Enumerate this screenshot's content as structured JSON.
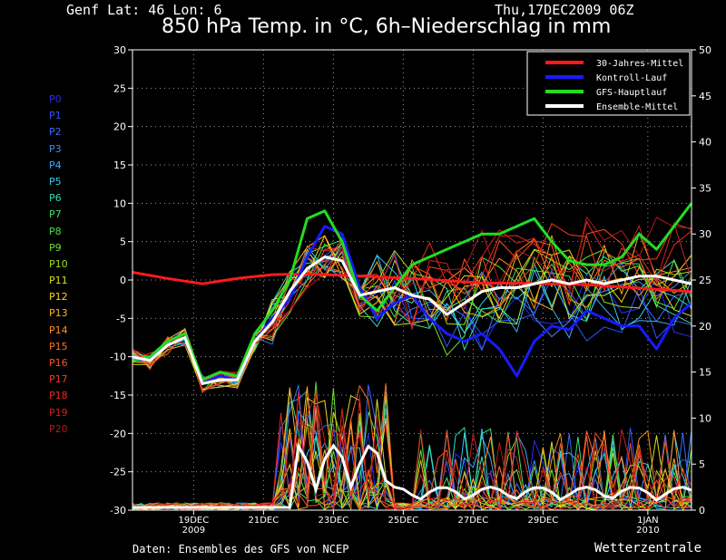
{
  "header": {
    "location": "Genf   Lat: 46 Lon: 6",
    "date": "Thu,17DEC2009 06Z",
    "title": "850 hPa Temp. in °C, 6h–Niederschlag in mm"
  },
  "footer": {
    "source": "Daten: Ensembles des GFS von NCEP",
    "brand": "Wetterzentrale"
  },
  "members": [
    {
      "label": "P0",
      "color": "#2a2aff"
    },
    {
      "label": "P1",
      "color": "#3355ff"
    },
    {
      "label": "P2",
      "color": "#3b6bff"
    },
    {
      "label": "P3",
      "color": "#3d8cff"
    },
    {
      "label": "P4",
      "color": "#3ab0ff"
    },
    {
      "label": "P5",
      "color": "#30d0f0"
    },
    {
      "label": "P6",
      "color": "#30e0b0"
    },
    {
      "label": "P7",
      "color": "#40e070"
    },
    {
      "label": "P8",
      "color": "#50e040"
    },
    {
      "label": "P9",
      "color": "#70e030"
    },
    {
      "label": "P10",
      "color": "#a0e020"
    },
    {
      "label": "P11",
      "color": "#d8e020"
    },
    {
      "label": "P12",
      "color": "#ffd020"
    },
    {
      "label": "P13",
      "color": "#ffb020"
    },
    {
      "label": "P14",
      "color": "#ff9020"
    },
    {
      "label": "P15",
      "color": "#ff7020"
    },
    {
      "label": "P16",
      "color": "#ff5020"
    },
    {
      "label": "P17",
      "color": "#ff3820"
    },
    {
      "label": "P18",
      "color": "#e82a20"
    },
    {
      "label": "P19",
      "color": "#d02020"
    },
    {
      "label": "P20",
      "color": "#b81818"
    }
  ],
  "chart_data": {
    "type": "line",
    "x_tick_labels": [
      "19DEC\n2009",
      "21DEC",
      "23DEC",
      "25DEC",
      "27DEC",
      "29DEC",
      "1JAN\n2010"
    ],
    "x_tick_days": [
      1.75,
      3.75,
      5.75,
      7.75,
      9.75,
      11.75,
      14.75
    ],
    "x_range_days": [
      0,
      16
    ],
    "y_left": {
      "range": [
        -30,
        30
      ],
      "ticks": [
        30,
        25,
        20,
        15,
        10,
        5,
        0,
        -5,
        -10,
        -15,
        -20,
        -25,
        -30
      ]
    },
    "y_right": {
      "range": [
        0,
        50
      ],
      "ticks": [
        50,
        45,
        40,
        35,
        30,
        25,
        20,
        15,
        10,
        5,
        0
      ]
    },
    "grid": true,
    "legend_position": "top-right",
    "series": [
      {
        "name": "30-Jahres-Mittel",
        "color": "#ff1a1a",
        "width": 3,
        "x": [
          0,
          1,
          2,
          3,
          4,
          5,
          6,
          7,
          8,
          9,
          10,
          11,
          12,
          13,
          14,
          15,
          16
        ],
        "y": [
          1,
          0.2,
          -0.5,
          0.2,
          0.7,
          0.8,
          0.6,
          0.4,
          0.2,
          -0.1,
          -0.4,
          -0.4,
          -0.5,
          -0.6,
          -0.9,
          -1.2,
          -1.5
        ]
      },
      {
        "name": "Kontroll-Lauf",
        "color": "#1a1aff",
        "width": 3,
        "x": [
          0,
          0.5,
          1,
          1.5,
          2,
          2.5,
          3,
          3.5,
          4,
          4.5,
          5,
          5.5,
          6,
          6.5,
          7,
          7.5,
          8,
          8.5,
          9,
          9.5,
          10,
          10.5,
          11,
          11.5,
          12,
          12.5,
          13,
          13.5,
          14,
          14.5,
          15,
          15.5,
          16
        ],
        "y": [
          -10,
          -10.5,
          -8,
          -7,
          -13.5,
          -12.5,
          -13,
          -8,
          -5,
          -2.5,
          3,
          7,
          6,
          -1,
          -5,
          -3,
          -2,
          -5,
          -7,
          -8,
          -7,
          -9,
          -12.5,
          -8,
          -6,
          -6.5,
          -4,
          -5,
          -6,
          -6,
          -9,
          -5,
          -3
        ]
      },
      {
        "name": "GFS-Hauptlauf",
        "color": "#22dd22",
        "width": 3,
        "x": [
          0,
          0.5,
          1,
          1.5,
          2,
          2.5,
          3,
          3.5,
          4,
          4.5,
          5,
          5.5,
          6,
          6.5,
          7,
          7.5,
          8,
          8.5,
          9,
          9.5,
          10,
          10.5,
          11,
          11.5,
          12,
          12.5,
          13,
          13.5,
          14,
          14.5,
          15,
          15.5,
          16
        ],
        "y": [
          -10.5,
          -10,
          -8,
          -7,
          -13,
          -12,
          -12.5,
          -7,
          -4,
          0,
          8,
          9,
          5,
          -2,
          -4,
          -1,
          2,
          3,
          4,
          5,
          6,
          6,
          7,
          8,
          5,
          2.5,
          2,
          2,
          3,
          6,
          4,
          7,
          10
        ]
      },
      {
        "name": "Ensemble-Mittel",
        "color": "#ffffff",
        "width": 3,
        "x": [
          0,
          0.5,
          1,
          1.5,
          2,
          2.5,
          3,
          3.5,
          4,
          4.5,
          5,
          5.5,
          6,
          6.5,
          7,
          7.5,
          8,
          8.5,
          9,
          9.5,
          10,
          10.5,
          11,
          11.5,
          12,
          12.5,
          13,
          13.5,
          14,
          14.5,
          15,
          15.5,
          16
        ],
        "y": [
          -10,
          -10.5,
          -8.5,
          -7.5,
          -13.5,
          -13,
          -13,
          -8,
          -5.5,
          -1.5,
          1.5,
          3,
          2.5,
          -2,
          -1.5,
          -1,
          -2,
          -2.5,
          -4.5,
          -3,
          -1.5,
          -1,
          -1,
          -0.5,
          0,
          -0.5,
          0,
          -0.5,
          0,
          0.5,
          0.5,
          0,
          -0.5
        ]
      }
    ]
  }
}
